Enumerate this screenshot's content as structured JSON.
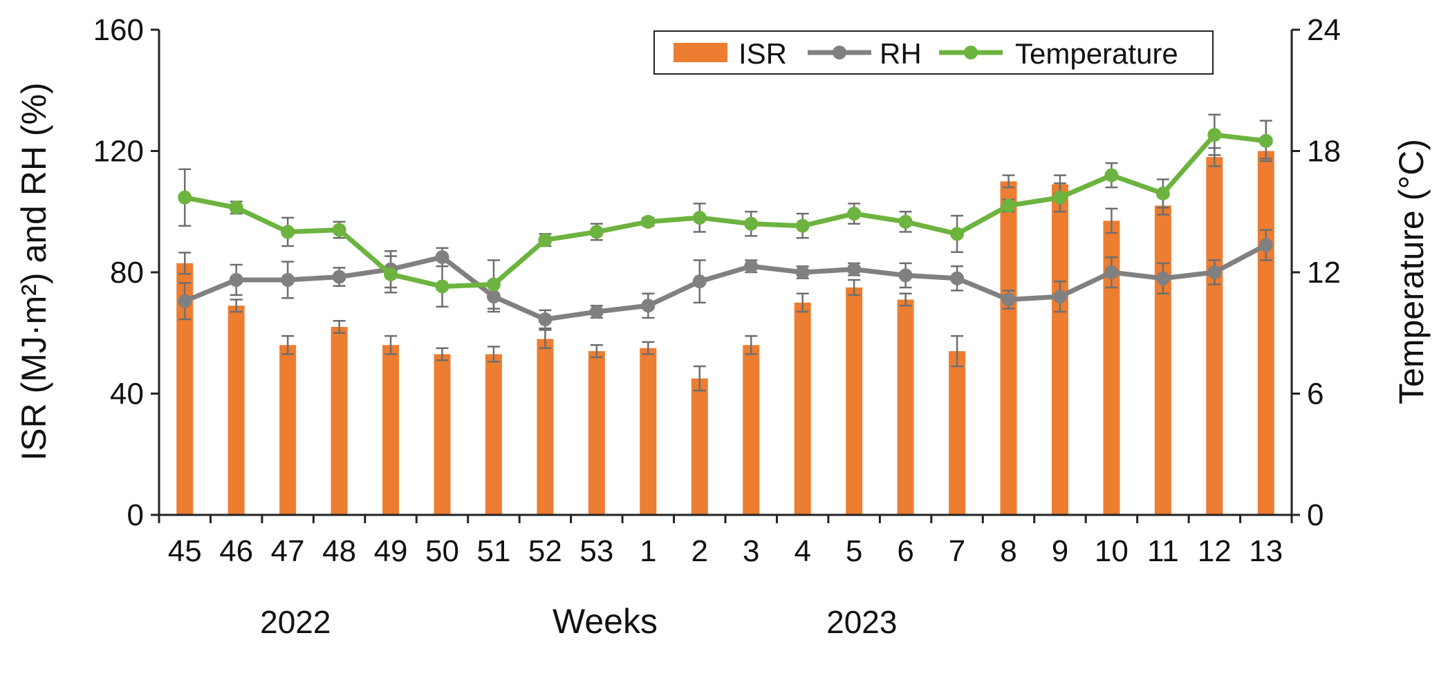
{
  "chart_data": {
    "type": "bar",
    "categories": [
      "45",
      "46",
      "47",
      "48",
      "49",
      "50",
      "51",
      "52",
      "53",
      "1",
      "2",
      "3",
      "4",
      "5",
      "6",
      "7",
      "8",
      "9",
      "10",
      "11",
      "12",
      "13"
    ],
    "xlabel": "Weeks",
    "year_labels": [
      {
        "text": "2022",
        "category": "47"
      },
      {
        "text": "2023",
        "category": "5"
      }
    ],
    "ylabel_left": "ISR (MJ·m²) and RH (%)",
    "ylabel_right": "Temperature (°C)",
    "ylim_left": [
      0,
      160
    ],
    "yticks_left": [
      0,
      40,
      80,
      120,
      160
    ],
    "ylim_right": [
      0,
      24
    ],
    "yticks_right": [
      0,
      6,
      12,
      18,
      24
    ],
    "grid": false,
    "legend_position": "top-right",
    "series": [
      {
        "name": "ISR",
        "type": "bar",
        "axis": "left",
        "color": "#ED7D31",
        "values": [
          83,
          69,
          56,
          62,
          56,
          53,
          53,
          58,
          54,
          55,
          45,
          56,
          70,
          75,
          71,
          54,
          110,
          109,
          97,
          102,
          118,
          120
        ],
        "errors": [
          3.5,
          2,
          3,
          2,
          3,
          2,
          2.5,
          3,
          2,
          2,
          4,
          3,
          3,
          2.5,
          2,
          5,
          2,
          3,
          4,
          3,
          3,
          2.5
        ]
      },
      {
        "name": "RH",
        "type": "line",
        "axis": "left",
        "color": "#808080",
        "values": [
          70.5,
          77.5,
          77.5,
          78.5,
          81,
          85,
          72,
          64.5,
          67,
          69,
          77,
          82,
          80,
          81,
          79,
          78,
          71,
          72,
          80,
          78,
          80,
          89
        ],
        "errors": [
          6,
          5,
          6,
          3,
          6,
          3,
          5,
          3,
          2,
          4,
          7,
          2,
          2,
          2,
          4,
          4,
          3,
          5,
          5,
          5,
          4,
          5
        ]
      },
      {
        "name": "Temperature",
        "type": "line",
        "axis": "right",
        "color": "#6CB33F",
        "values": [
          15.7,
          15.2,
          14.0,
          14.1,
          11.9,
          11.3,
          11.4,
          13.6,
          14.0,
          14.5,
          14.7,
          14.4,
          14.3,
          14.9,
          14.5,
          13.9,
          15.3,
          15.7,
          16.8,
          15.9,
          18.8,
          18.5
        ],
        "errors": [
          1.4,
          0.3,
          0.7,
          0.4,
          0.9,
          1.0,
          1.2,
          0.3,
          0.4,
          0.2,
          0.7,
          0.6,
          0.6,
          0.5,
          0.5,
          0.9,
          0.3,
          0.7,
          0.6,
          0.7,
          1.0,
          1.0
        ]
      }
    ]
  }
}
